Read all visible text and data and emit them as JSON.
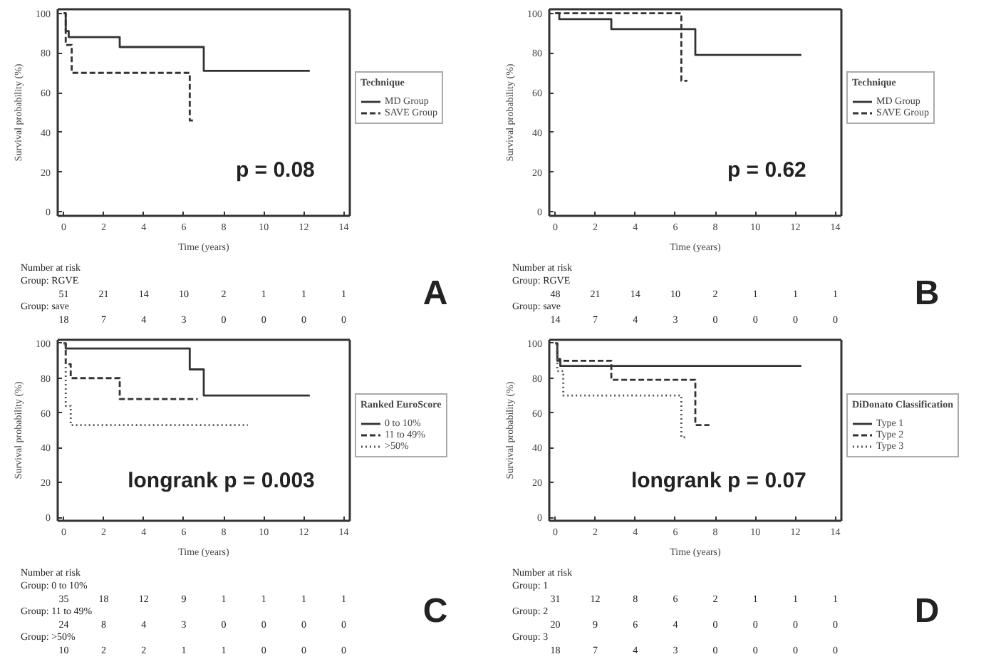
{
  "chart_data": [
    {
      "type": "step",
      "xlabel": "Time (years)",
      "ylabel": "Survival probability (%)",
      "legend_title": "Technique",
      "legend": "right",
      "grid": false,
      "xlim": [
        -0.3,
        14.3
      ],
      "ylim": [
        -2,
        102
      ],
      "xticks": [
        0,
        2,
        4,
        6,
        8,
        10,
        12,
        14
      ],
      "yticks": [
        0,
        20,
        40,
        60,
        80,
        100
      ],
      "series": [
        {
          "name": "MD Group",
          "color": "#333333",
          "line_style": "solid",
          "x": [
            0,
            0.1,
            0.25,
            2.8,
            7.0,
            12.3
          ],
          "values": [
            100,
            91,
            88,
            83,
            71,
            71
          ]
        },
        {
          "name": "SAVE Group",
          "color": "#333333",
          "line_style": "dashed",
          "x": [
            0,
            0.1,
            0.4,
            6.3,
            6.6
          ],
          "values": [
            100,
            84,
            70,
            46,
            46
          ]
        }
      ],
      "annotations": [
        "p = 0.08",
        "A",
        "Number at risk",
        "Group: RGVE",
        "51 21 14 10 2 1 1 1",
        "Group: save",
        "18 7 4 3 0 0 0 0"
      ]
    },
    {
      "type": "step",
      "xlabel": "Time (years)",
      "ylabel": "Survival probability (%)",
      "legend_title": "Technique",
      "legend": "right",
      "grid": false,
      "xlim": [
        -0.3,
        14.3
      ],
      "ylim": [
        -2,
        102
      ],
      "xticks": [
        0,
        2,
        4,
        6,
        8,
        10,
        12,
        14
      ],
      "yticks": [
        0,
        20,
        40,
        60,
        80,
        100
      ],
      "series": [
        {
          "name": "MD Group",
          "color": "#333333",
          "line_style": "solid",
          "x": [
            0,
            0.2,
            2.8,
            7.0,
            12.3
          ],
          "values": [
            100,
            97,
            92,
            79,
            79
          ]
        },
        {
          "name": "SAVE Group",
          "color": "#333333",
          "line_style": "dashed",
          "x": [
            0,
            6.3,
            6.6
          ],
          "values": [
            100,
            66,
            66
          ]
        }
      ],
      "annotations": [
        "p = 0.62",
        "B",
        "Number at risk",
        "Group: RGVE",
        "48 21 14 10 2 1 1 1",
        "Group: save",
        "14 7 4 3 0 0 0 0"
      ]
    },
    {
      "type": "step",
      "xlabel": "Time (years)",
      "ylabel": "Survival probability (%)",
      "legend_title": "Ranked EuroScore",
      "legend": "right",
      "grid": false,
      "xlim": [
        -0.3,
        14.3
      ],
      "ylim": [
        -2,
        102
      ],
      "xticks": [
        0,
        2,
        4,
        6,
        8,
        10,
        12,
        14
      ],
      "yticks": [
        0,
        20,
        40,
        60,
        80,
        100
      ],
      "series": [
        {
          "name": "0 to 10%",
          "color": "#333333",
          "line_style": "solid",
          "x": [
            0,
            0.1,
            6.3,
            7.0,
            12.3
          ],
          "values": [
            100,
            97,
            85,
            70,
            70
          ]
        },
        {
          "name": "11 to 49%",
          "color": "#333333",
          "line_style": "dashed",
          "x": [
            0,
            0.1,
            0.35,
            2.8,
            6.7
          ],
          "values": [
            100,
            88,
            80,
            68,
            68
          ]
        },
        {
          "name": ">50%",
          "color": "#555555",
          "line_style": "dotted",
          "x": [
            0,
            0.1,
            0.35,
            9.2
          ],
          "values": [
            100,
            64,
            53,
            53
          ]
        }
      ],
      "annotations": [
        "longrank p = 0.003",
        "C",
        "Number at risk",
        "Group: 0 to 10%",
        "35 18 12 9 1 1 1 1",
        "Group: 11 to 49%",
        "24 8 4 3 0 0 0 0",
        "Group: >50%",
        "10 2 2 1 1 0 0 0"
      ]
    },
    {
      "type": "step",
      "xlabel": "Time (years)",
      "ylabel": "Survival probability (%)",
      "legend_title": "DiDonato Classification",
      "legend": "right",
      "grid": false,
      "xlim": [
        -0.3,
        14.3
      ],
      "ylim": [
        -2,
        102
      ],
      "xticks": [
        0,
        2,
        4,
        6,
        8,
        10,
        12,
        14
      ],
      "yticks": [
        0,
        20,
        40,
        60,
        80,
        100
      ],
      "series": [
        {
          "name": "Type 1",
          "color": "#333333",
          "line_style": "solid",
          "x": [
            0,
            0.1,
            0.25,
            12.3
          ],
          "values": [
            100,
            91,
            87,
            87
          ]
        },
        {
          "name": "Type 2",
          "color": "#333333",
          "line_style": "dashed",
          "x": [
            0,
            0.1,
            2.8,
            7.0,
            7.7
          ],
          "values": [
            100,
            90,
            79,
            53,
            53
          ]
        },
        {
          "name": "Type 3",
          "color": "#555555",
          "line_style": "dotted",
          "x": [
            0,
            0.1,
            0.4,
            6.3,
            6.6
          ],
          "values": [
            100,
            84,
            70,
            46,
            46
          ]
        }
      ],
      "annotations": [
        "longrank p = 0.07",
        "D",
        "Number at risk",
        "Group: 1",
        "31 12 8 6 2 1 1 1",
        "Group: 2",
        "20 9 6 4 0 0 0 0",
        "Group: 3",
        "18 7 4 3 0 0 0 0"
      ]
    }
  ]
}
